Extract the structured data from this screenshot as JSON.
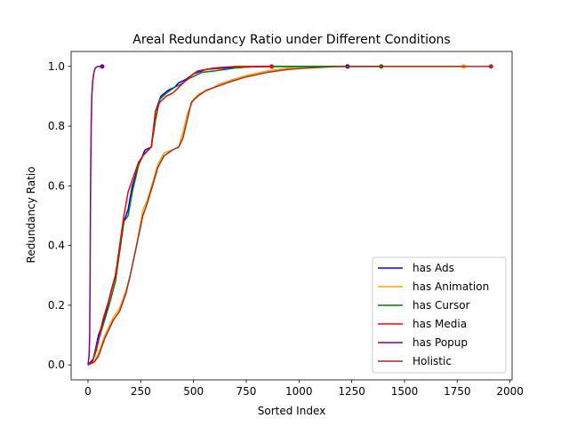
{
  "chart_data": {
    "type": "line",
    "title": "Areal Redundancy Ratio under Different Conditions",
    "xlabel": "Sorted Index",
    "ylabel": "Redundancy Ratio",
    "xlim": [
      -80,
      2010
    ],
    "ylim": [
      -0.05,
      1.05
    ],
    "xticks": [
      0,
      250,
      500,
      750,
      1000,
      1250,
      1500,
      1750,
      2000
    ],
    "yticks": [
      0.0,
      0.2,
      0.4,
      0.6,
      0.8,
      1.0
    ],
    "grid": false,
    "legend_position": "lower-right",
    "series": [
      {
        "name": "has Ads",
        "color": "#0000ff",
        "end_marker": true,
        "points": [
          [
            0,
            0
          ],
          [
            25,
            0.02
          ],
          [
            50,
            0.1
          ],
          [
            80,
            0.16
          ],
          [
            110,
            0.25
          ],
          [
            130,
            0.3
          ],
          [
            150,
            0.38
          ],
          [
            170,
            0.48
          ],
          [
            190,
            0.52
          ],
          [
            210,
            0.6
          ],
          [
            240,
            0.67
          ],
          [
            270,
            0.72
          ],
          [
            300,
            0.73
          ],
          [
            320,
            0.85
          ],
          [
            345,
            0.9
          ],
          [
            380,
            0.92
          ],
          [
            410,
            0.93
          ],
          [
            430,
            0.945
          ],
          [
            460,
            0.955
          ],
          [
            500,
            0.975
          ],
          [
            560,
            0.99
          ],
          [
            650,
            0.995
          ],
          [
            750,
            0.998
          ],
          [
            900,
            1.0
          ],
          [
            1000,
            1.0
          ],
          [
            1230,
            1.0
          ]
        ]
      },
      {
        "name": "has Animation",
        "color": "#ffa500",
        "end_marker": true,
        "points": [
          [
            0,
            0
          ],
          [
            30,
            0.01
          ],
          [
            50,
            0.04
          ],
          [
            80,
            0.1
          ],
          [
            120,
            0.16
          ],
          [
            150,
            0.19
          ],
          [
            180,
            0.25
          ],
          [
            200,
            0.3
          ],
          [
            230,
            0.4
          ],
          [
            260,
            0.52
          ],
          [
            280,
            0.55
          ],
          [
            310,
            0.62
          ],
          [
            330,
            0.67
          ],
          [
            360,
            0.71
          ],
          [
            400,
            0.72
          ],
          [
            430,
            0.73
          ],
          [
            450,
            0.78
          ],
          [
            470,
            0.84
          ],
          [
            500,
            0.89
          ],
          [
            530,
            0.91
          ],
          [
            570,
            0.92
          ],
          [
            620,
            0.94
          ],
          [
            680,
            0.955
          ],
          [
            750,
            0.97
          ],
          [
            850,
            0.985
          ],
          [
            950,
            0.995
          ],
          [
            1050,
            1.0
          ],
          [
            1500,
            1.0
          ],
          [
            1780,
            1.0
          ]
        ]
      },
      {
        "name": "has Cursor",
        "color": "#008000",
        "end_marker": true,
        "points": [
          [
            0,
            0
          ],
          [
            20,
            0.01
          ],
          [
            40,
            0.06
          ],
          [
            70,
            0.13
          ],
          [
            100,
            0.2
          ],
          [
            130,
            0.28
          ],
          [
            150,
            0.38
          ],
          [
            170,
            0.48
          ],
          [
            190,
            0.5
          ],
          [
            210,
            0.58
          ],
          [
            240,
            0.67
          ],
          [
            260,
            0.7
          ],
          [
            300,
            0.73
          ],
          [
            320,
            0.82
          ],
          [
            340,
            0.89
          ],
          [
            370,
            0.91
          ],
          [
            410,
            0.93
          ],
          [
            440,
            0.94
          ],
          [
            480,
            0.96
          ],
          [
            540,
            0.98
          ],
          [
            600,
            0.985
          ],
          [
            700,
            0.995
          ],
          [
            800,
            1.0
          ],
          [
            1000,
            1.0
          ],
          [
            1390,
            1.0
          ]
        ]
      },
      {
        "name": "has Media",
        "color": "#ff0000",
        "end_marker": true,
        "points": [
          [
            0,
            0
          ],
          [
            20,
            0.01
          ],
          [
            40,
            0.05
          ],
          [
            70,
            0.15
          ],
          [
            100,
            0.22
          ],
          [
            130,
            0.3
          ],
          [
            150,
            0.4
          ],
          [
            170,
            0.5
          ],
          [
            190,
            0.58
          ],
          [
            210,
            0.62
          ],
          [
            240,
            0.68
          ],
          [
            270,
            0.71
          ],
          [
            300,
            0.73
          ],
          [
            320,
            0.85
          ],
          [
            340,
            0.88
          ],
          [
            370,
            0.9
          ],
          [
            400,
            0.91
          ],
          [
            430,
            0.93
          ],
          [
            460,
            0.95
          ],
          [
            490,
            0.97
          ],
          [
            520,
            0.985
          ],
          [
            600,
            0.995
          ],
          [
            700,
            1.0
          ],
          [
            870,
            1.0
          ]
        ]
      },
      {
        "name": "has Popup",
        "color": "#800080",
        "end_marker": true,
        "points": [
          [
            0,
            0
          ],
          [
            5,
            0.03
          ],
          [
            8,
            0.1
          ],
          [
            10,
            0.3
          ],
          [
            12,
            0.6
          ],
          [
            15,
            0.8
          ],
          [
            18,
            0.9
          ],
          [
            22,
            0.95
          ],
          [
            28,
            0.98
          ],
          [
            35,
            0.995
          ],
          [
            45,
            1.0
          ],
          [
            67,
            1.0
          ]
        ]
      },
      {
        "name": "Holistic",
        "color": "#a52a2a",
        "end_marker": true,
        "points": [
          [
            0,
            0
          ],
          [
            30,
            0.01
          ],
          [
            50,
            0.03
          ],
          [
            80,
            0.09
          ],
          [
            120,
            0.15
          ],
          [
            150,
            0.18
          ],
          [
            180,
            0.24
          ],
          [
            200,
            0.3
          ],
          [
            230,
            0.4
          ],
          [
            260,
            0.5
          ],
          [
            280,
            0.54
          ],
          [
            310,
            0.61
          ],
          [
            330,
            0.66
          ],
          [
            360,
            0.7
          ],
          [
            400,
            0.72
          ],
          [
            430,
            0.73
          ],
          [
            450,
            0.76
          ],
          [
            470,
            0.82
          ],
          [
            490,
            0.88
          ],
          [
            520,
            0.9
          ],
          [
            560,
            0.92
          ],
          [
            620,
            0.935
          ],
          [
            680,
            0.95
          ],
          [
            750,
            0.965
          ],
          [
            850,
            0.98
          ],
          [
            950,
            0.99
          ],
          [
            1050,
            0.995
          ],
          [
            1200,
            1.0
          ],
          [
            1500,
            1.0
          ],
          [
            1910,
            1.0
          ]
        ]
      }
    ]
  }
}
